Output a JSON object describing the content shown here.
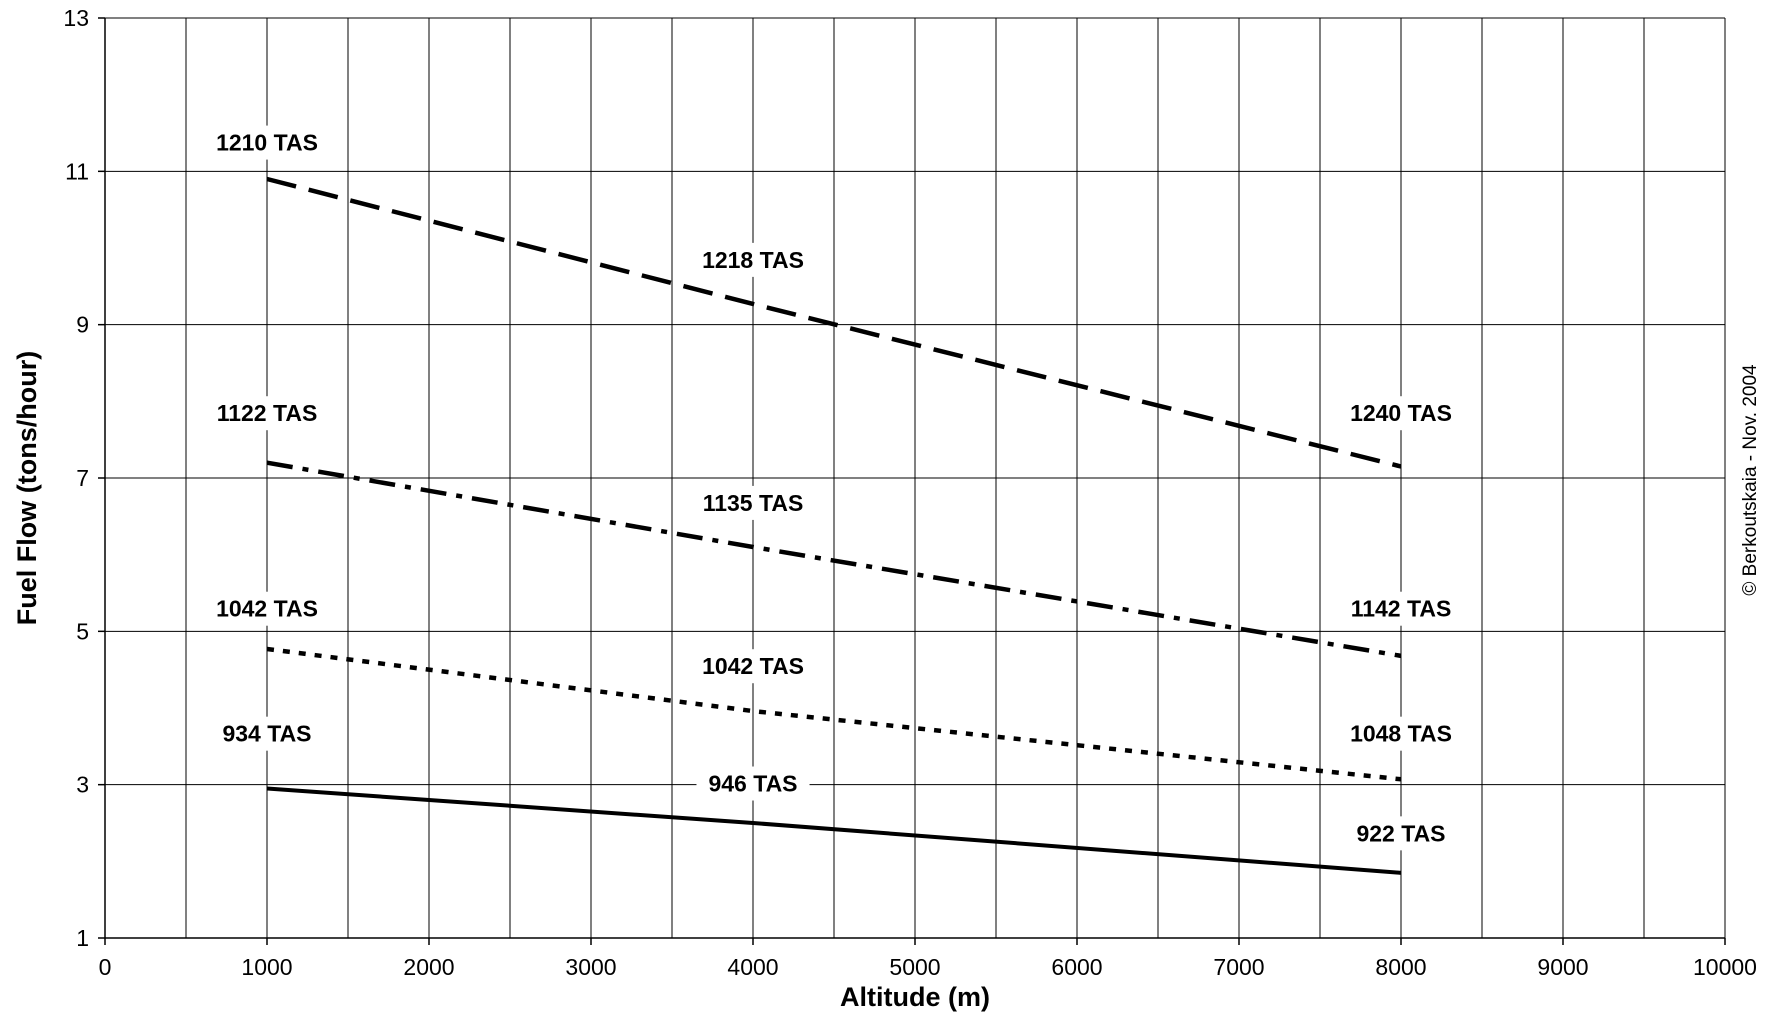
{
  "chart_data": {
    "type": "line",
    "title": "",
    "xlabel": "Altitude (m)",
    "ylabel": "Fuel Flow (tons/hour)",
    "xlim": [
      0,
      10000
    ],
    "ylim": [
      1,
      13
    ],
    "x_ticks": [
      0,
      1000,
      2000,
      3000,
      4000,
      5000,
      6000,
      7000,
      8000,
      9000,
      10000
    ],
    "y_ticks": [
      1,
      3,
      5,
      7,
      9,
      11,
      13
    ],
    "x_minor_grid_step": 500,
    "grid": true,
    "legend": "none",
    "series": [
      {
        "style": "long-dash",
        "x": [
          1000,
          4000,
          8000
        ],
        "y": [
          10.9,
          9.27,
          7.15
        ],
        "labels": [
          {
            "text": "1210 TAS",
            "x": 1000,
            "y": 11.35
          },
          {
            "text": "1218 TAS",
            "x": 4000,
            "y": 9.82
          },
          {
            "text": "1240 TAS",
            "x": 8000,
            "y": 7.82
          }
        ]
      },
      {
        "style": "dash-dot",
        "x": [
          1000,
          4000,
          8000
        ],
        "y": [
          7.2,
          6.1,
          4.68
        ],
        "labels": [
          {
            "text": "1122 TAS",
            "x": 1000,
            "y": 7.82
          },
          {
            "text": "1135 TAS",
            "x": 4000,
            "y": 6.65
          },
          {
            "text": "1142 TAS",
            "x": 8000,
            "y": 5.27
          }
        ]
      },
      {
        "style": "dotted",
        "x": [
          1000,
          4000,
          8000
        ],
        "y": [
          4.77,
          3.96,
          3.07
        ],
        "labels": [
          {
            "text": "1042 TAS",
            "x": 1000,
            "y": 5.27
          },
          {
            "text": "1042 TAS",
            "x": 4000,
            "y": 4.52
          },
          {
            "text": "1048 TAS",
            "x": 8000,
            "y": 3.64
          }
        ]
      },
      {
        "style": "solid",
        "x": [
          1000,
          4000,
          8000
        ],
        "y": [
          2.95,
          2.5,
          1.85
        ],
        "labels": [
          {
            "text": "934 TAS",
            "x": 1000,
            "y": 3.64
          },
          {
            "text": "946 TAS",
            "x": 4000,
            "y": 2.99
          },
          {
            "text": "922 TAS",
            "x": 8000,
            "y": 2.34
          }
        ]
      }
    ],
    "annotation": "© Berkoutskaia - Nov. 2004"
  }
}
